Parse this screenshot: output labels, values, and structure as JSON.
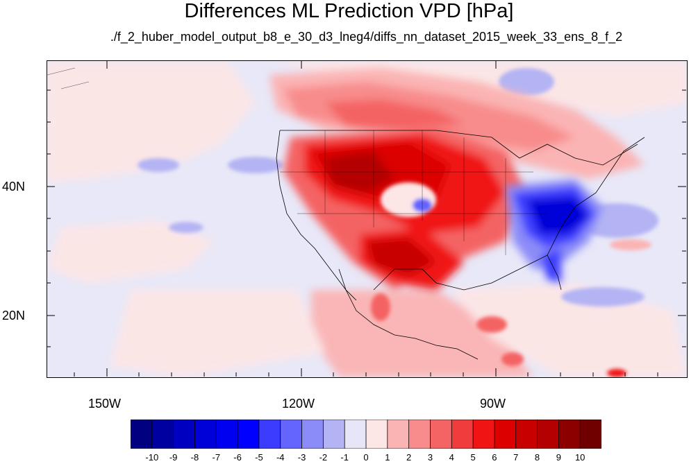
{
  "title": "Differences ML Prediction VPD [hPa]",
  "subtitle": "./f_2_huber_model_output_b8_e_30_d3_lneg4/diffs_nn_dataset_2015_week_33_ens_8_f_2",
  "lat_labels": [
    "40N",
    "20N"
  ],
  "lon_labels": [
    "150W",
    "120W",
    "90W"
  ],
  "colorbar": {
    "labels": [
      "-10",
      "-9",
      "-8",
      "-7",
      "-6",
      "-5",
      "-4",
      "-3",
      "-2",
      "-1",
      "0",
      "1",
      "2",
      "3",
      "4",
      "5",
      "6",
      "7",
      "8",
      "9",
      "10"
    ],
    "colors": [
      "#000080",
      "#0000a0",
      "#0000c0",
      "#0000d8",
      "#0000f0",
      "#0000ff",
      "#3c3cff",
      "#6464ff",
      "#8c8cf8",
      "#b4b4f4",
      "#e6e6f8",
      "#fde6e6",
      "#fbb4b4",
      "#f88c8c",
      "#f46464",
      "#f03c3c",
      "#f01414",
      "#dc0000",
      "#c80000",
      "#b40000",
      "#8c0000",
      "#700000"
    ]
  },
  "chart_data": {
    "type": "heatmap",
    "title": "Differences ML Prediction VPD [hPa]",
    "subtitle": "./f_2_huber_model_output_b8_e_30_d3_lneg4/diffs_nn_dataset_2015_week_33_ens_8_f_2",
    "x_ticks": [
      "150W",
      "120W",
      "90W"
    ],
    "y_ticks": [
      "40N",
      "20N"
    ],
    "colorbar_range": [
      -10,
      10
    ],
    "colorbar_step": 1
  }
}
